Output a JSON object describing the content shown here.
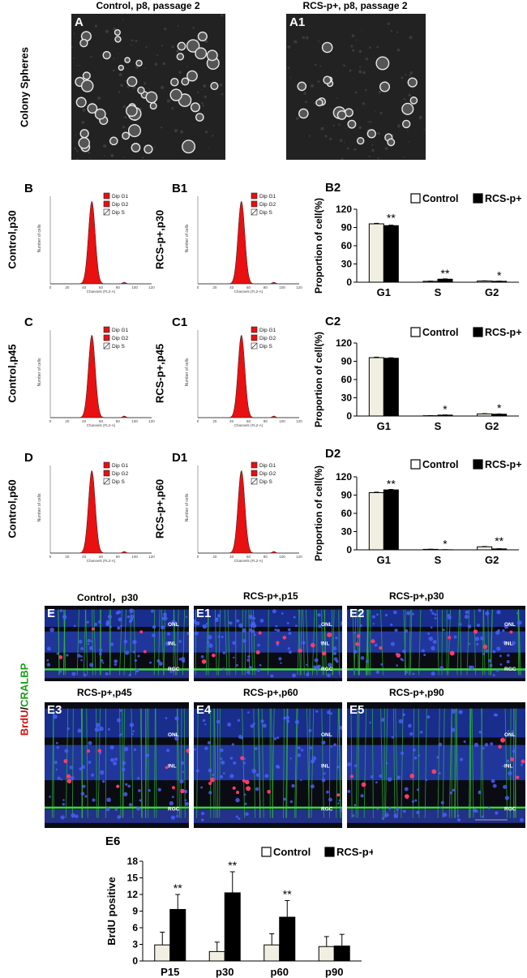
{
  "section_a": {
    "ylabel": "Colony Spheres",
    "panels": [
      {
        "label": "A",
        "title": "Control, p8, passage 2"
      },
      {
        "label": "A1",
        "title": "RCS-p+, p8, passage 2"
      }
    ]
  },
  "flow": {
    "legend": [
      "Dip G1",
      "Dip G2",
      "Dip S"
    ],
    "ylabel": "Number of cells",
    "xlabel": "Channels (FL2-A)",
    "ticks": [
      "0",
      "20",
      "40",
      "60",
      "80",
      "100",
      "120"
    ],
    "rows": [
      {
        "left": {
          "label": "B",
          "side": "Control,p30"
        },
        "right": {
          "label": "B1",
          "side": "RCS-p+,p30"
        }
      },
      {
        "left": {
          "label": "C",
          "side": "Control,p45"
        },
        "right": {
          "label": "C1",
          "side": "RCS-p+,p45"
        }
      },
      {
        "left": {
          "label": "D",
          "side": "Control,p60"
        },
        "right": {
          "label": "D1",
          "side": "RCS-p+,p60"
        }
      }
    ]
  },
  "fluor": {
    "ylabel_red": "BrdU",
    "ylabel_sep": "/",
    "ylabel_green": "CRALBP",
    "layers": [
      "ONL",
      "INL",
      "RGC"
    ],
    "panels": [
      {
        "label": "E",
        "title": "Control，p30"
      },
      {
        "label": "E1",
        "title": "RCS-p+,p15"
      },
      {
        "label": "E2",
        "title": "RCS-p+,p30"
      },
      {
        "label": "E3",
        "title": "RCS-p+,p45"
      },
      {
        "label": "E4",
        "title": "RCS-p+,p60"
      },
      {
        "label": "E5",
        "title": "RCS-p+,p90"
      }
    ]
  },
  "chart_data": [
    {
      "panel": "B2",
      "type": "bar",
      "ylabel": "Proportion of cell(%)",
      "ylim": [
        0,
        120
      ],
      "yticks": [
        0,
        30,
        60,
        90,
        120
      ],
      "categories": [
        "G1",
        "S",
        "G2"
      ],
      "series": [
        {
          "name": "Control",
          "values": [
            96,
            1.5,
            2.0
          ],
          "errors": [
            0.8,
            0.3,
            0.3
          ]
        },
        {
          "name": "RCS-p+",
          "values": [
            93,
            5.0,
            1.5
          ],
          "errors": [
            0.8,
            0.5,
            0.3
          ]
        }
      ],
      "significance": [
        "**",
        "**",
        "*"
      ]
    },
    {
      "panel": "C2",
      "type": "bar",
      "ylabel": "Proportion of cell(%)",
      "ylim": [
        0,
        120
      ],
      "yticks": [
        0,
        30,
        60,
        90,
        120
      ],
      "categories": [
        "G1",
        "S",
        "G2"
      ],
      "series": [
        {
          "name": "Control",
          "values": [
            96,
            0.5,
            3.5
          ],
          "errors": [
            0.8,
            0.2,
            0.4
          ]
        },
        {
          "name": "RCS-p+",
          "values": [
            95,
            1.5,
            3.0
          ],
          "errors": [
            0.8,
            0.3,
            0.4
          ]
        }
      ],
      "significance": [
        "",
        "*",
        "*"
      ]
    },
    {
      "panel": "D2",
      "type": "bar",
      "ylabel": "Proportion of cell(%)",
      "ylim": [
        0,
        120
      ],
      "yticks": [
        0,
        30,
        60,
        90,
        120
      ],
      "categories": [
        "G1",
        "S",
        "G2"
      ],
      "series": [
        {
          "name": "Control",
          "values": [
            94,
            0.8,
            5.0
          ],
          "errors": [
            0.8,
            0.2,
            0.5
          ]
        },
        {
          "name": "RCS-p+",
          "values": [
            98.5,
            0.2,
            1.5
          ],
          "errors": [
            0.8,
            0.1,
            0.3
          ]
        }
      ],
      "significance": [
        "**",
        "*",
        "**"
      ]
    },
    {
      "panel": "E6",
      "type": "bar",
      "ylabel": "BrdU  positive",
      "ylim": [
        0,
        18
      ],
      "yticks": [
        0,
        3,
        6,
        9,
        12,
        15,
        18
      ],
      "categories": [
        "P15",
        "p30",
        "p60",
        "p90"
      ],
      "series": [
        {
          "name": "Control",
          "values": [
            2.9,
            1.7,
            2.9,
            2.6
          ],
          "errors": [
            2.3,
            1.7,
            2.0,
            1.8
          ]
        },
        {
          "name": "RCS-p+",
          "values": [
            9.3,
            12.3,
            7.9,
            2.7
          ],
          "errors": [
            2.7,
            3.8,
            3.0,
            2.1
          ]
        }
      ],
      "significance": [
        "**",
        "**",
        "**",
        ""
      ]
    }
  ]
}
